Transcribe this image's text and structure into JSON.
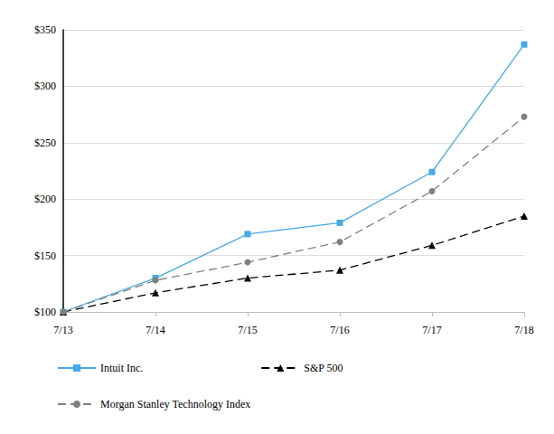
{
  "chart_data": {
    "type": "line",
    "categories": [
      "7/13",
      "7/14",
      "7/15",
      "7/16",
      "7/17",
      "7/18"
    ],
    "series": [
      {
        "name": "Intuit Inc.",
        "color": "#47a9e6",
        "marker": "square",
        "line_style": "solid",
        "values": [
          100,
          130,
          169,
          179,
          224,
          337
        ]
      },
      {
        "name": "S&P 500",
        "color": "#000000",
        "marker": "triangle",
        "line_style": "dashed",
        "values": [
          100,
          117,
          130,
          137,
          159,
          185
        ]
      },
      {
        "name": "Morgan Stanley Technology Index",
        "color": "#808080",
        "marker": "circle",
        "line_style": "dashed",
        "values": [
          100,
          128,
          144,
          162,
          207,
          273
        ]
      }
    ],
    "ylim": [
      100,
      350
    ],
    "yticks": [
      {
        "value": 100,
        "label": "$100"
      },
      {
        "value": 150,
        "label": "$150"
      },
      {
        "value": 200,
        "label": "$200"
      },
      {
        "value": 250,
        "label": "$250"
      },
      {
        "value": 300,
        "label": "$300"
      },
      {
        "value": 350,
        "label": "$350"
      }
    ],
    "grid": true,
    "legend": "bottom"
  }
}
